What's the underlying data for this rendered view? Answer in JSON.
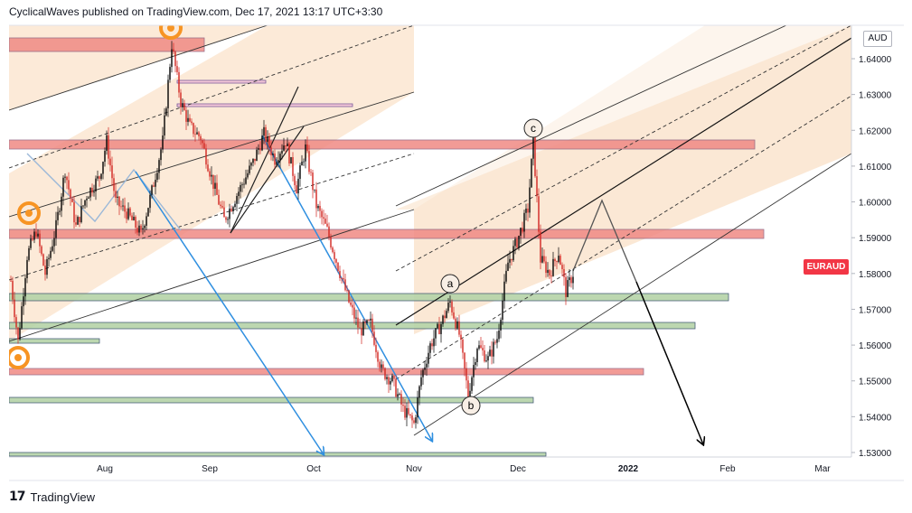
{
  "header": {
    "author": "CyclicalWaves",
    "published_text": "published on TradingView.com, Dec 17, 2021 13:17 UTC+3:30"
  },
  "footer": {
    "logo_text": "17",
    "brand": "TradingView"
  },
  "currency": "AUD",
  "symbol_tag": "EURAUD",
  "colors": {
    "bull": "#000000",
    "bear": "#d1241f",
    "channel_fill": "#f9d9b8",
    "resistance_zone": "#f08a84",
    "support_zone": "#b5d3a8",
    "arrow_blue": "#2f8fe0",
    "symbol_red": "#f23645"
  },
  "chart_data": {
    "type": "candlestick",
    "symbol": "EURAUD",
    "currency": "AUD",
    "ylim": [
      1.525,
      1.65
    ],
    "y_ticks": [
      "1.53000",
      "1.54000",
      "1.55000",
      "1.56000",
      "1.57000",
      "1.58000",
      "1.59000",
      "1.60000",
      "1.61000",
      "1.62000",
      "1.63000",
      "1.64000"
    ],
    "x_ticks": [
      "Aug",
      "Sep",
      "Oct",
      "Nov",
      "Dec",
      "2022",
      "Feb",
      "Mar"
    ],
    "wave_labels": [
      "a",
      "b",
      "c"
    ],
    "last_price": 1.5815,
    "horizontal_zones": [
      {
        "kind": "resistance",
        "price": 1.6435
      },
      {
        "kind": "resistance",
        "price": 1.6165
      },
      {
        "kind": "resistance",
        "price": 1.5915
      },
      {
        "kind": "resistance",
        "price": 1.5525
      },
      {
        "kind": "support",
        "price": 1.5745
      },
      {
        "kind": "support",
        "price": 1.5655
      },
      {
        "kind": "support",
        "price": 1.545
      },
      {
        "kind": "support",
        "price": 1.5615
      },
      {
        "kind": "support",
        "price": 1.53
      }
    ]
  }
}
